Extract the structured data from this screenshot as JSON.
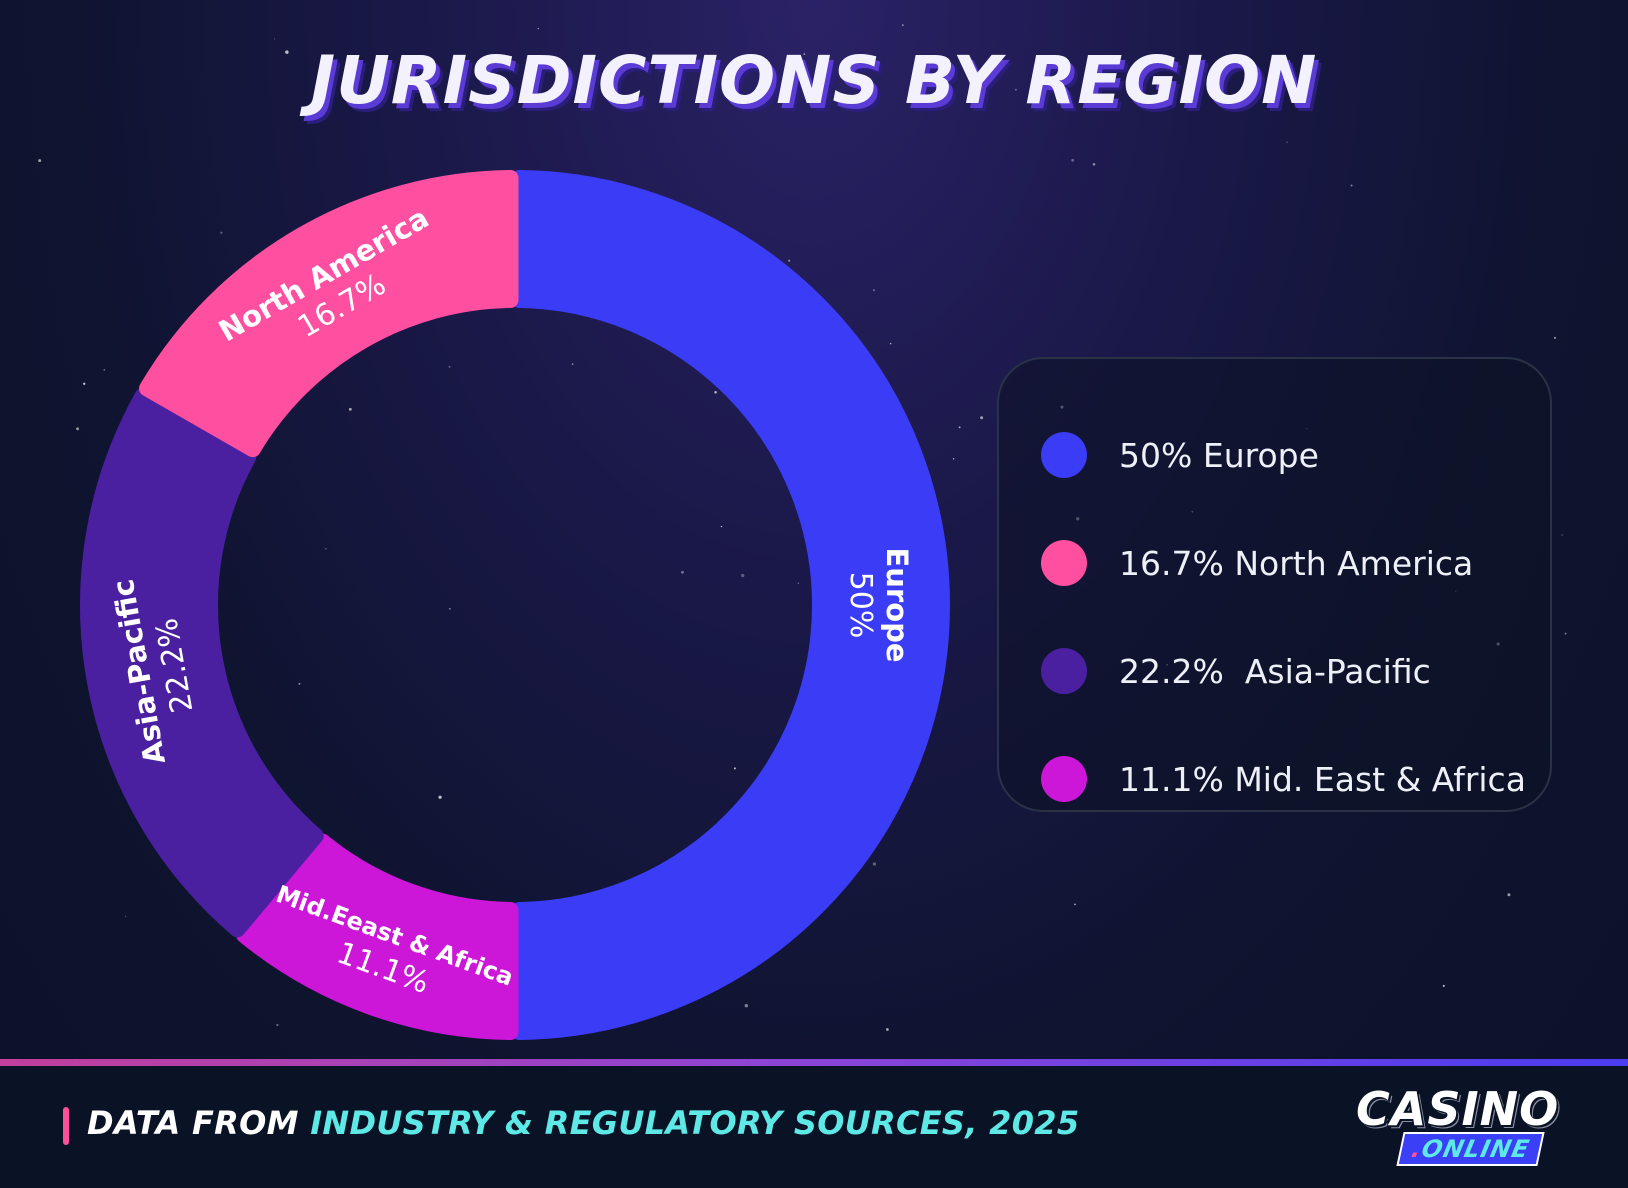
{
  "title": "JURISDICTIONS BY REGION",
  "colors": {
    "europe": "#3a3cf6",
    "north_america": "#ff4fa0",
    "asia_pacific": "#4a20a0",
    "mid_east_africa": "#cc16d8"
  },
  "chart_data": {
    "type": "pie",
    "title": "JURISDICTIONS BY REGION",
    "unit": "%",
    "slices": [
      {
        "name": "Europe",
        "value": 50,
        "label": "50%",
        "color": "#3a3cf6"
      },
      {
        "name": "Mid.Eeast & Africa",
        "value": 11.1,
        "label": "11.1%",
        "color": "#cc16d8"
      },
      {
        "name": "Asia-Pacific",
        "value": 22.2,
        "label": "22.2%",
        "color": "#4a20a0"
      },
      {
        "name": "North America",
        "value": 16.7,
        "label": "16.7%",
        "color": "#ff4fa0"
      }
    ],
    "legend": [
      {
        "text": "50% Europe",
        "color": "#3a3cf6"
      },
      {
        "text": "16.7% North America",
        "color": "#ff4fa0"
      },
      {
        "text": "22.2%  Asia-Pacific",
        "color": "#4a20a0"
      },
      {
        "text": "11.1% Mid. East & Africa",
        "color": "#cc16d8"
      }
    ],
    "legend_position": "right"
  },
  "footer": {
    "prefix": "DATA FROM ",
    "source": "INDUSTRY & REGULATORY SOURCES, 2025"
  },
  "logo": {
    "main": "CASINO",
    "dot": ".",
    "sub": "ONLINE"
  }
}
